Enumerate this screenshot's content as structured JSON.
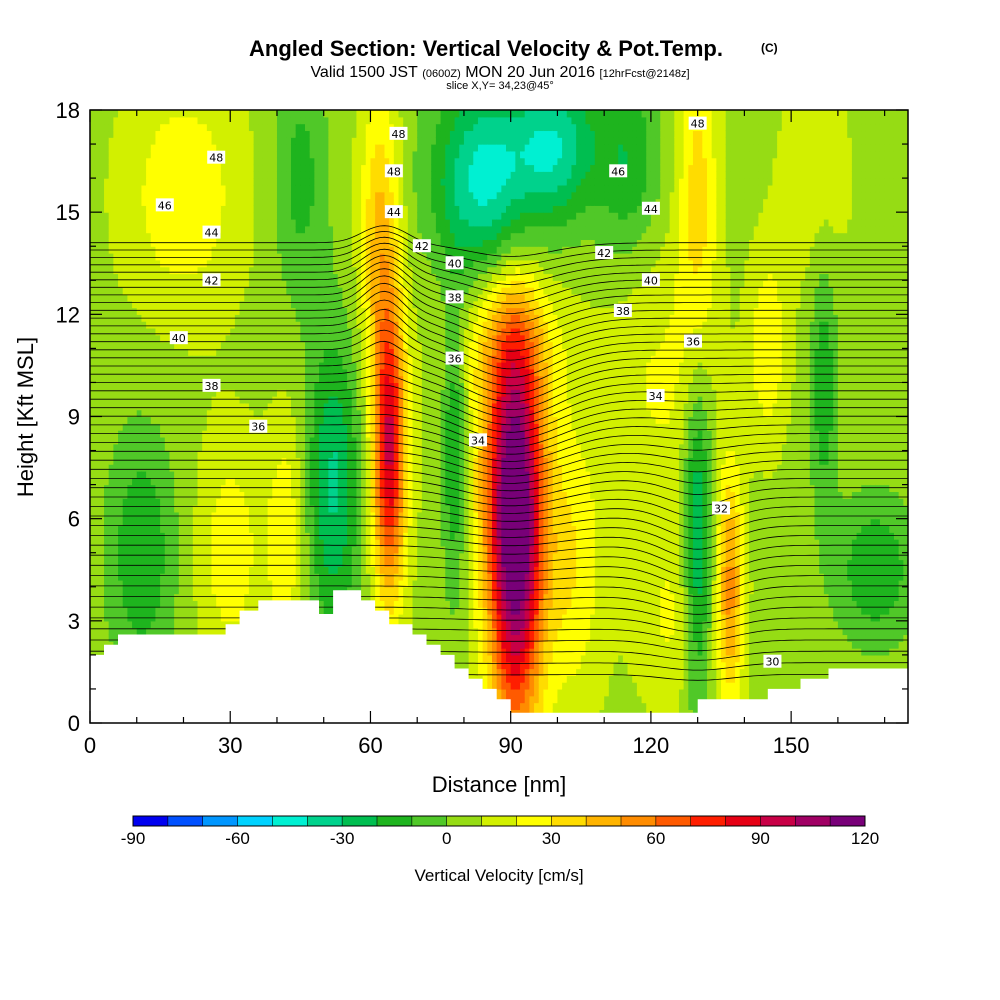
{
  "title": {
    "main": "Angled Section: Vertical Velocity & Pot.Temp.",
    "tag": "(C)",
    "valid_prefix": "Valid 1500 JST",
    "valid_zulu": "(0600Z)",
    "valid_date": "MON 20 Jun 2016",
    "forecast": "[12hrFcst@2148z]",
    "slice": "slice X,Y= 34,23@45°"
  },
  "chart_data": {
    "type": "heatmap",
    "xlabel": "Distance [nm]",
    "ylabel": "Height [Kft MSL]",
    "xlim": [
      0,
      175
    ],
    "ylim": [
      0,
      18
    ],
    "x_ticks": [
      0,
      30,
      60,
      90,
      120,
      150
    ],
    "x_ticks_minor_step": 10,
    "y_ticks": [
      0,
      3,
      6,
      9,
      12,
      15,
      18
    ],
    "y_ticks_minor_step": 1,
    "colorbar": {
      "title": "Vertical Velocity [cm/s]",
      "min": -90,
      "max": 120,
      "step": 10,
      "tick_labels": [
        -90,
        -60,
        -30,
        0,
        30,
        60,
        90,
        120
      ],
      "colors": [
        "#0000f0",
        "#0050ff",
        "#0096ff",
        "#00d2ff",
        "#00f0d2",
        "#00d28c",
        "#00be50",
        "#1eb41e",
        "#50c828",
        "#96dc14",
        "#d2f000",
        "#ffff00",
        "#ffdc00",
        "#ffb400",
        "#ff8c00",
        "#ff5a00",
        "#ff1e00",
        "#e60014",
        "#c80046",
        "#a00064",
        "#780078"
      ]
    },
    "terrain_kft": [
      [
        0,
        2.0
      ],
      [
        3,
        2.0
      ],
      [
        3,
        2.3
      ],
      [
        6,
        2.3
      ],
      [
        6,
        2.6
      ],
      [
        29,
        2.6
      ],
      [
        29,
        2.9
      ],
      [
        32,
        2.9
      ],
      [
        32,
        3.3
      ],
      [
        36,
        3.3
      ],
      [
        36,
        3.6
      ],
      [
        49,
        3.6
      ],
      [
        49,
        3.2
      ],
      [
        52,
        3.2
      ],
      [
        52,
        3.9
      ],
      [
        58,
        3.9
      ],
      [
        58,
        3.6
      ],
      [
        61,
        3.6
      ],
      [
        61,
        3.3
      ],
      [
        64,
        3.3
      ],
      [
        64,
        2.9
      ],
      [
        69,
        2.9
      ],
      [
        69,
        2.6
      ],
      [
        72,
        2.6
      ],
      [
        72,
        2.3
      ],
      [
        75,
        2.3
      ],
      [
        75,
        2.0
      ],
      [
        78,
        2.0
      ],
      [
        78,
        1.6
      ],
      [
        81,
        1.6
      ],
      [
        81,
        1.3
      ],
      [
        84,
        1.3
      ],
      [
        84,
        1.0
      ],
      [
        87,
        1.0
      ],
      [
        87,
        0.7
      ],
      [
        90,
        0.7
      ],
      [
        90,
        0.3
      ],
      [
        130,
        0.3
      ],
      [
        130,
        0.7
      ],
      [
        145,
        0.7
      ],
      [
        145,
        1.0
      ],
      [
        152,
        1.0
      ],
      [
        152,
        1.3
      ],
      [
        158,
        1.3
      ],
      [
        158,
        1.6
      ],
      [
        175,
        1.6
      ]
    ],
    "velocity_features": [
      {
        "x": 91,
        "y": 5.6,
        "sx": 4,
        "sy": 4.2,
        "value": 115
      },
      {
        "x": 88,
        "y": 7.5,
        "sx": 8,
        "sy": 3.0,
        "value": 20
      },
      {
        "x": 64,
        "y": 8.0,
        "sx": 2.5,
        "sy": 3.0,
        "value": 85
      },
      {
        "x": 62,
        "y": 14.5,
        "sx": 3,
        "sy": 3.0,
        "value": 35
      },
      {
        "x": 90,
        "y": 11.2,
        "sx": 9,
        "sy": 1.4,
        "value": 18
      },
      {
        "x": 52,
        "y": 7.0,
        "sx": 4,
        "sy": 3.0,
        "value": -38
      },
      {
        "x": 78,
        "y": 8.0,
        "sx": 2,
        "sy": 3.0,
        "value": -35
      },
      {
        "x": 130,
        "y": 5.5,
        "sx": 2.2,
        "sy": 3.5,
        "value": -42
      },
      {
        "x": 137,
        "y": 4.0,
        "sx": 2,
        "sy": 2.5,
        "value": 45
      },
      {
        "x": 125,
        "y": 3.0,
        "sx": 6,
        "sy": 2.0,
        "value": 15
      },
      {
        "x": 122,
        "y": 10.0,
        "sx": 8,
        "sy": 3.0,
        "value": 15
      },
      {
        "x": 30,
        "y": 5.0,
        "sx": 5,
        "sy": 2.5,
        "value": 20
      },
      {
        "x": 42,
        "y": 5.5,
        "sx": 3,
        "sy": 2.5,
        "value": 22
      },
      {
        "x": 103,
        "y": 4.5,
        "sx": 5,
        "sy": 3.0,
        "value": 22
      },
      {
        "x": 11,
        "y": 5.0,
        "sx": 5,
        "sy": 2.5,
        "value": -25
      },
      {
        "x": 85,
        "y": 16.0,
        "sx": 8,
        "sy": 2.0,
        "value": -52
      },
      {
        "x": 100,
        "y": 17.0,
        "sx": 6,
        "sy": 1.5,
        "value": -40
      },
      {
        "x": 20,
        "y": 15.5,
        "sx": 9,
        "sy": 2.5,
        "value": 22
      },
      {
        "x": 130,
        "y": 15.5,
        "sx": 3,
        "sy": 3.5,
        "value": 28
      },
      {
        "x": 115,
        "y": 16.5,
        "sx": 5,
        "sy": 2.0,
        "value": -25
      },
      {
        "x": 45,
        "y": 16.0,
        "sx": 4,
        "sy": 2.5,
        "value": -20
      },
      {
        "x": 155,
        "y": 16.0,
        "sx": 6,
        "sy": 2.5,
        "value": 10
      },
      {
        "x": 145,
        "y": 11.0,
        "sx": 3,
        "sy": 2.0,
        "value": 22
      },
      {
        "x": 157,
        "y": 10.0,
        "sx": 2,
        "sy": 2.5,
        "value": -25
      },
      {
        "x": 168,
        "y": 4.5,
        "sx": 6,
        "sy": 1.5,
        "value": -25
      }
    ],
    "contour_labels": [
      {
        "text": "48",
        "x": 27,
        "y": 16.6
      },
      {
        "text": "46",
        "x": 16,
        "y": 15.2
      },
      {
        "text": "44",
        "x": 26,
        "y": 14.4
      },
      {
        "text": "42",
        "x": 26,
        "y": 13.0
      },
      {
        "text": "40",
        "x": 19,
        "y": 11.3
      },
      {
        "text": "38",
        "x": 26,
        "y": 9.9
      },
      {
        "text": "36",
        "x": 36,
        "y": 8.7
      },
      {
        "text": "48",
        "x": 66,
        "y": 17.3
      },
      {
        "text": "48",
        "x": 65,
        "y": 16.2
      },
      {
        "text": "44",
        "x": 65,
        "y": 15.0
      },
      {
        "text": "42",
        "x": 71,
        "y": 14.0
      },
      {
        "text": "40",
        "x": 78,
        "y": 13.5
      },
      {
        "text": "38",
        "x": 78,
        "y": 12.5
      },
      {
        "text": "36",
        "x": 78,
        "y": 10.7
      },
      {
        "text": "34",
        "x": 83,
        "y": 8.3
      },
      {
        "text": "48",
        "x": 130,
        "y": 17.6
      },
      {
        "text": "46",
        "x": 113,
        "y": 16.2
      },
      {
        "text": "44",
        "x": 120,
        "y": 15.1
      },
      {
        "text": "42",
        "x": 110,
        "y": 13.8
      },
      {
        "text": "40",
        "x": 120,
        "y": 13.0
      },
      {
        "text": "38",
        "x": 114,
        "y": 12.1
      },
      {
        "text": "36",
        "x": 129,
        "y": 11.2
      },
      {
        "text": "34",
        "x": 121,
        "y": 9.6
      },
      {
        "text": "32",
        "x": 135,
        "y": 6.3
      },
      {
        "text": "30",
        "x": 146,
        "y": 1.8
      }
    ]
  }
}
